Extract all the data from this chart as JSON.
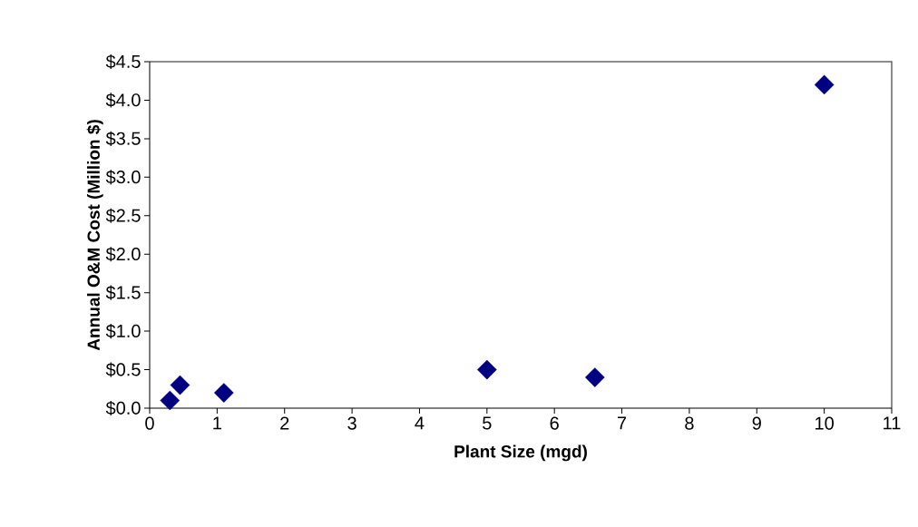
{
  "chart_data": {
    "type": "scatter",
    "xlabel": "Plant Size (mgd)",
    "ylabel": "Annual O&M Cost (Million $)",
    "x": [
      0.3,
      0.45,
      1.1,
      5,
      6.6,
      10
    ],
    "values": [
      0.1,
      0.3,
      0.2,
      0.5,
      0.4,
      4.2
    ],
    "color": "#000080",
    "marker": "diamond",
    "xlim": [
      0,
      11
    ],
    "xticks": [
      0,
      1,
      2,
      3,
      4,
      5,
      6,
      7,
      8,
      9,
      10,
      11
    ],
    "ylim": [
      0,
      4.5
    ],
    "yticks": [
      {
        "value": 0,
        "label": "$0.0"
      },
      {
        "value": 0.5,
        "label": "$0.5"
      },
      {
        "value": 1,
        "label": "$1.0"
      },
      {
        "value": 1.5,
        "label": "$1.5"
      },
      {
        "value": 2,
        "label": "$2.0"
      },
      {
        "value": 2.5,
        "label": "$2.5"
      },
      {
        "value": 3,
        "label": "$3.0"
      },
      {
        "value": 3.5,
        "label": "$3.5"
      },
      {
        "value": 4,
        "label": "$4.0"
      },
      {
        "value": 4.5,
        "label": "$4.5"
      }
    ],
    "grid": false
  }
}
